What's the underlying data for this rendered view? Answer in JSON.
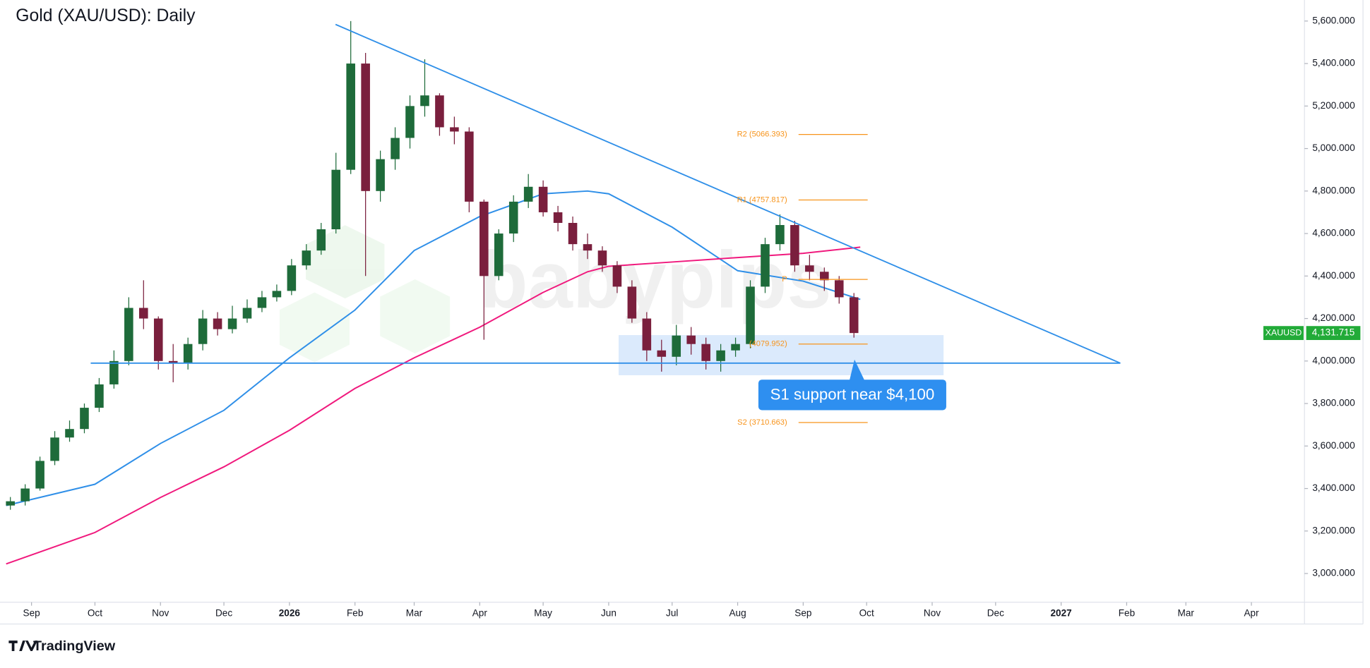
{
  "chart_data": {
    "type": "candlestick",
    "title": "Gold (XAU/USD): Daily",
    "watermark": "babypips",
    "brand": "TradingView",
    "xlim": [
      -11.6,
      602.1
    ],
    "ylim": [
      2865,
      5699
    ],
    "xticks": [
      {
        "value": 0,
        "label": "Sep"
      },
      {
        "value": 30,
        "label": "Oct"
      },
      {
        "value": 61,
        "label": "Nov"
      },
      {
        "value": 91,
        "label": "Dec"
      },
      {
        "value": 122,
        "label": "2026"
      },
      {
        "value": 153,
        "label": "Feb"
      },
      {
        "value": 181,
        "label": "Mar"
      },
      {
        "value": 212,
        "label": "Apr"
      },
      {
        "value": 242,
        "label": "May"
      },
      {
        "value": 273,
        "label": "Jun"
      },
      {
        "value": 303,
        "label": "Jul"
      },
      {
        "value": 334,
        "label": "Aug"
      },
      {
        "value": 365,
        "label": "Sep"
      },
      {
        "value": 395,
        "label": "Oct"
      },
      {
        "value": 426,
        "label": "Nov"
      },
      {
        "value": 456,
        "label": "Dec"
      },
      {
        "value": 487,
        "label": "2027"
      },
      {
        "value": 518,
        "label": "Feb"
      },
      {
        "value": 546,
        "label": "Mar"
      },
      {
        "value": 577,
        "label": "Apr"
      }
    ],
    "yticks": [
      {
        "value": 3000,
        "label": "3,000.000"
      },
      {
        "value": 3200,
        "label": "3,200.000"
      },
      {
        "value": 3400,
        "label": "3,400.000"
      },
      {
        "value": 3600,
        "label": "3,600.000"
      },
      {
        "value": 3800,
        "label": "3,800.000"
      },
      {
        "value": 4000,
        "label": "4,000.000"
      },
      {
        "value": 4200,
        "label": "4,200.000"
      },
      {
        "value": 4400,
        "label": "4,400.000"
      },
      {
        "value": 4600,
        "label": "4,600.000"
      },
      {
        "value": 4800,
        "label": "4,800.000"
      },
      {
        "value": 5000,
        "label": "5,000.000"
      },
      {
        "value": 5200,
        "label": "5,200.000"
      },
      {
        "value": 5400,
        "label": "5,400.000"
      },
      {
        "value": 5600,
        "label": "5,600.000"
      }
    ],
    "up_color": "#1e6b3a",
    "down_color": "#7a1f3d",
    "x": [
      -10,
      -3,
      4,
      11,
      18,
      25,
      32,
      39,
      46,
      53,
      60,
      67,
      74,
      81,
      88,
      95,
      102,
      109,
      116,
      123,
      130,
      137,
      144,
      151,
      158,
      165,
      172,
      179,
      186,
      193,
      200,
      207,
      214,
      221,
      228,
      235,
      242,
      249,
      256,
      263,
      270,
      277,
      284,
      291,
      298,
      305,
      312,
      319,
      326,
      333,
      340,
      347,
      354,
      361,
      368,
      375,
      382,
      389
    ],
    "open": [
      3320,
      3340,
      3400,
      3530,
      3640,
      3680,
      3780,
      3890,
      4000,
      4250,
      4200,
      4000,
      3990,
      4080,
      4200,
      4150,
      4200,
      4250,
      4300,
      4330,
      4450,
      4520,
      4620,
      4900,
      5400,
      4800,
      4950,
      5050,
      5200,
      5250,
      5100,
      5080,
      4750,
      4400,
      4600,
      4750,
      4820,
      4700,
      4650,
      4550,
      4520,
      4450,
      4350,
      4200,
      4050,
      4020,
      4120,
      4080,
      4000,
      4050,
      4080,
      4350,
      4550,
      4640,
      4450,
      4420,
      4380,
      4300
    ],
    "high": [
      3360,
      3420,
      3550,
      3670,
      3720,
      3800,
      3920,
      4050,
      4300,
      4380,
      4210,
      4080,
      4110,
      4240,
      4230,
      4260,
      4290,
      4330,
      4360,
      4480,
      4550,
      4650,
      4980,
      5600,
      5450,
      4990,
      5100,
      5250,
      5420,
      5260,
      5150,
      5100,
      4760,
      4620,
      4780,
      4880,
      4850,
      4730,
      4680,
      4600,
      4540,
      4470,
      4380,
      4230,
      4100,
      4170,
      4160,
      4110,
      4080,
      4110,
      4380,
      4580,
      4690,
      4660,
      4500,
      4440,
      4400,
      4320
    ],
    "low": [
      3300,
      3320,
      3390,
      3510,
      3620,
      3660,
      3760,
      3870,
      3980,
      4150,
      3960,
      3900,
      3960,
      4050,
      4120,
      4130,
      4180,
      4230,
      4280,
      4310,
      4430,
      4500,
      4600,
      4880,
      4400,
      4750,
      4900,
      5000,
      5150,
      5060,
      5020,
      4700,
      4100,
      4380,
      4560,
      4720,
      4680,
      4610,
      4520,
      4480,
      4420,
      4320,
      4180,
      4000,
      3950,
      3980,
      4030,
      3960,
      3950,
      4020,
      4060,
      4320,
      4520,
      4420,
      4380,
      4330,
      4270,
      4110
    ],
    "close": [
      3340,
      3400,
      3530,
      3640,
      3680,
      3780,
      3890,
      4000,
      4250,
      4200,
      4000,
      3990,
      4080,
      4200,
      4150,
      4200,
      4250,
      4300,
      4330,
      4450,
      4520,
      4620,
      4900,
      5400,
      4800,
      4950,
      5050,
      5200,
      5250,
      5100,
      5080,
      4750,
      4400,
      4600,
      4750,
      4820,
      4700,
      4650,
      4550,
      4520,
      4450,
      4350,
      4200,
      4050,
      4020,
      4120,
      4080,
      4000,
      4050,
      4080,
      4350,
      4550,
      4640,
      4450,
      4420,
      4380,
      4300,
      4131.715
    ],
    "series": [
      {
        "color": "#2f8fe8",
        "x": [
          -12,
          30,
          61,
          91,
          122,
          153,
          181,
          212,
          242,
          263,
          273,
          303,
          334,
          365,
          392
        ],
        "values": [
          3320,
          3420,
          3612,
          3768,
          4015,
          4240,
          4520,
          4680,
          4787,
          4800,
          4787,
          4630,
          4425,
          4376,
          4290
        ]
      },
      {
        "color": "#f0197d",
        "x": [
          -12,
          30,
          61,
          91,
          122,
          153,
          181,
          212,
          242,
          263,
          273,
          303,
          334,
          365,
          392
        ],
        "values": [
          3045,
          3193,
          3358,
          3502,
          3674,
          3871,
          4015,
          4159,
          4323,
          4420,
          4446,
          4466,
          4487,
          4507,
          4536
        ]
      }
    ],
    "lines": [
      {
        "color": "#2f8fe8",
        "x": [
          143.8,
          515
        ],
        "y": [
          5584,
          3990
        ]
      },
      {
        "color": "#2f8fe8",
        "x": [
          28,
          515
        ],
        "y": [
          3990,
          3990
        ]
      }
    ],
    "pivot_color": "#f7931a",
    "pivot_x": [
      362.8,
      395.5
    ],
    "pivots": [
      {
        "label": "R2 (5066.393)",
        "value": 5066.393
      },
      {
        "label": "R1 (4757.817)",
        "value": 4757.817
      },
      {
        "label": "P",
        "value": 4384
      },
      {
        "label": "(4079.952)",
        "value": 4079.952
      },
      {
        "label": "S2 (3710.663)",
        "value": 3710.663
      }
    ],
    "zone": {
      "color": "#cfe3fb",
      "x": [
        277.7,
        431.4
      ],
      "y": [
        3933,
        4122
      ]
    },
    "callout": {
      "text": "S1 support near $4,100",
      "color": "#2e8ff0"
    },
    "last_price": {
      "symbol": "XAUUSD",
      "price": {
        "value": 4131.715,
        "label": "4,131.715"
      },
      "color": "#22ab38"
    }
  }
}
